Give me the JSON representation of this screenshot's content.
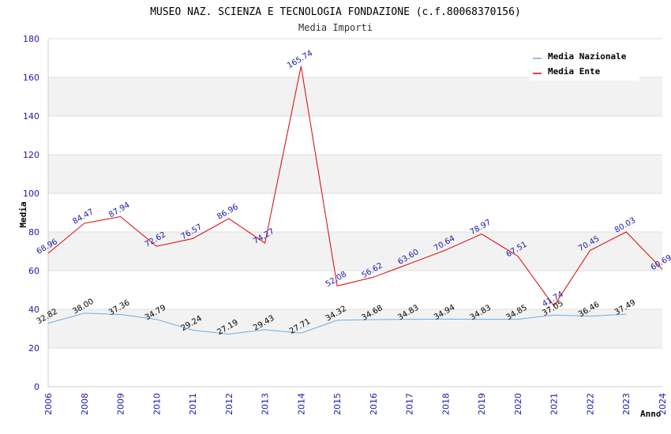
{
  "chart_data": {
    "type": "line",
    "title": "MUSEO NAZ. SCIENZA E TECNOLOGIA FONDAZIONE (c.f.80068370156)",
    "subtitle": "Media Importi",
    "xlabel": "Anno",
    "ylabel": "Media",
    "ylim": [
      0,
      180
    ],
    "yticks": [
      0,
      20,
      40,
      60,
      80,
      100,
      120,
      140,
      160,
      180
    ],
    "categories": [
      "2006",
      "2008",
      "2009",
      "2010",
      "2011",
      "2012",
      "2013",
      "2014",
      "2015",
      "2016",
      "2017",
      "2018",
      "2019",
      "2020",
      "2021",
      "2022",
      "2023",
      "2024"
    ],
    "series": [
      {
        "name": "Media Nazionale",
        "color": "#6aaee6",
        "label_color": "#000000",
        "values": [
          32.82,
          38.0,
          37.36,
          34.79,
          29.24,
          27.19,
          29.43,
          27.71,
          34.32,
          34.68,
          34.83,
          34.94,
          34.83,
          34.85,
          37.05,
          36.46,
          37.49,
          null
        ],
        "labels": [
          "32.82",
          "38.00",
          "37.36",
          "34.79",
          "29.24",
          "27.19",
          "29.43",
          "27.71",
          "34.32",
          "34.68",
          "34.83",
          "34.94",
          "34.83",
          "34.85",
          "37.05",
          "36.46",
          "37.49",
          null
        ]
      },
      {
        "name": "Media Ente",
        "color": "#dd0000",
        "label_color": "#1a1aa6",
        "values": [
          68.96,
          84.47,
          87.94,
          72.62,
          76.57,
          86.96,
          74.27,
          165.74,
          52.08,
          56.62,
          63.6,
          70.64,
          78.97,
          67.51,
          41.74,
          70.45,
          80.03,
          60.69
        ],
        "labels": [
          "68.96",
          "84.47",
          "87.94",
          "72.62",
          "76.57",
          "86.96",
          "74.27",
          "165.74",
          "52.08",
          "56.62",
          "63.60",
          "70.64",
          "78.97",
          "67.51",
          "41.74",
          "70.45",
          "80.03",
          "60.69"
        ]
      }
    ],
    "legend": "top-right",
    "grid": true,
    "band_colors": [
      "#f2f2f2",
      "#ffffff"
    ],
    "label_rotation_deg": -30
  }
}
